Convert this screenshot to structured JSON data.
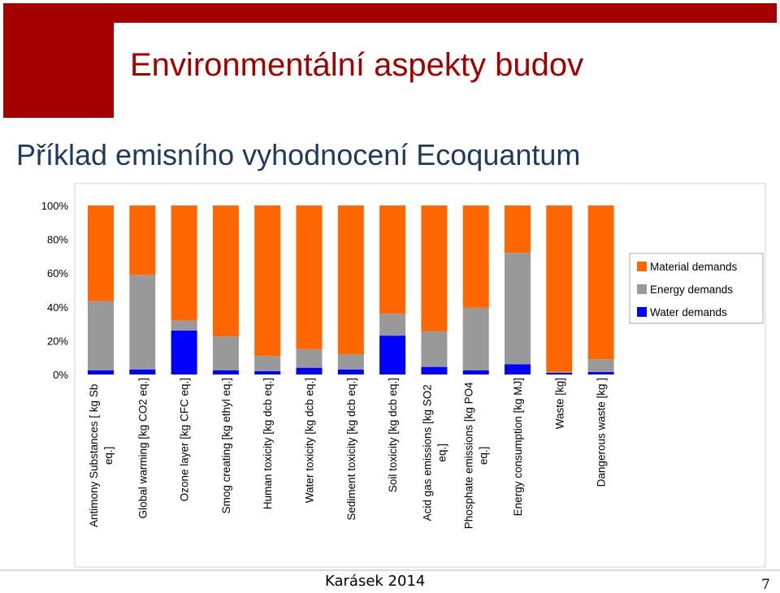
{
  "slide": {
    "title": "Environmentální aspekty budov",
    "subtitle": "Příklad emisního vyhodnocení Ecoquantum",
    "footer_author": "Karásek 2014",
    "page_number": "7"
  },
  "colors": {
    "header_red": "#a50000",
    "material": "#ff6600",
    "energy": "#999999",
    "water": "#0000ff"
  },
  "chart_data": {
    "type": "bar",
    "stacked": true,
    "percent": true,
    "categories": [
      "Antimony Substances [ kg Sb eq.]",
      "Global warming [kg CO2 eq.]",
      "Ozone layer [kg CFC eq.]",
      "Smog creating [kg ethyl eq.]",
      "Human toxicity [kg dcb eq.]",
      "Water toxicity [kg dcb eq.]",
      "Sediment toxicity [kg dcb eq.]",
      "Soil toxicity [kg dcb eq.]",
      "Acid gas emissions [kg SO2 eq.]",
      "Phosphate emissions [kg PO4 eq.]",
      "Energy consumption [kg MJ]",
      "Waste [kg]",
      "Dangerous waste [kg ]"
    ],
    "series": [
      {
        "name": "Water demands",
        "values": [
          2.5,
          3,
          26,
          2.5,
          2,
          4,
          3,
          23,
          4.5,
          2.5,
          6,
          1,
          1.5
        ]
      },
      {
        "name": "Energy demands",
        "values": [
          41,
          56,
          6,
          20,
          9,
          11,
          9,
          13,
          21,
          37,
          66,
          0.5,
          7.5
        ]
      },
      {
        "name": "Material demands",
        "values": [
          56.5,
          41,
          68,
          77.5,
          89,
          85,
          88,
          64,
          74.5,
          60.5,
          28,
          98.5,
          91
        ]
      }
    ],
    "y_ticks": [
      "0%",
      "20%",
      "40%",
      "60%",
      "80%",
      "100%"
    ],
    "ylim": [
      0,
      100
    ],
    "legend_order": [
      "Material demands",
      "Energy demands",
      "Water demands"
    ],
    "legend_position": "right",
    "grid": false
  }
}
